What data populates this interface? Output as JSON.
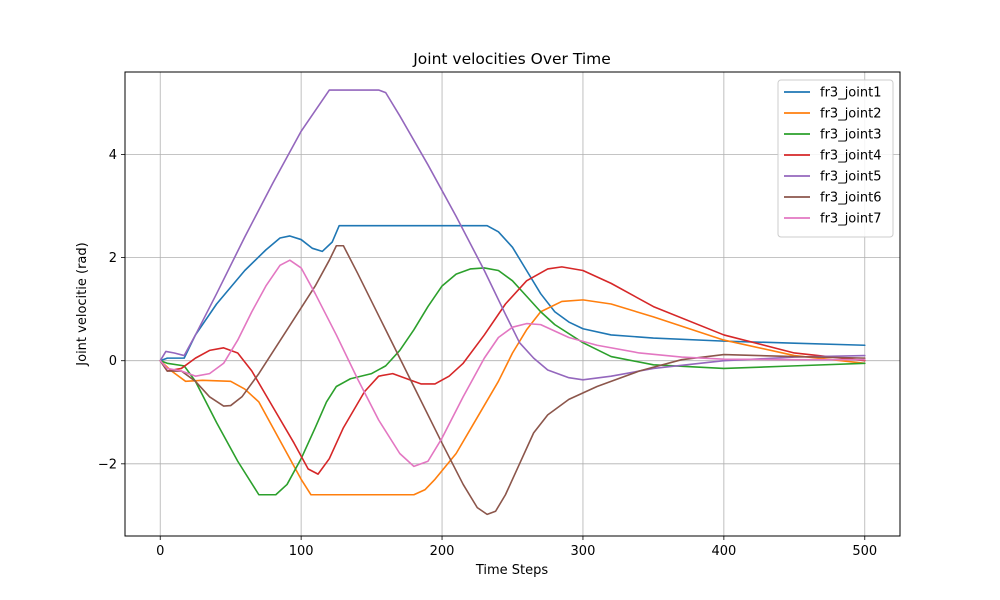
{
  "chart_data": {
    "type": "line",
    "title": "Joint velocities Over Time",
    "xlabel": "Time Steps",
    "ylabel": "Joint velocitie (rad)",
    "xlim": [
      -25,
      525
    ],
    "ylim": [
      -3.4,
      5.6
    ],
    "xticks": [
      0,
      100,
      200,
      300,
      400,
      500
    ],
    "yticks": [
      -2,
      0,
      2,
      4
    ],
    "grid": true,
    "legend_position": "upper-right",
    "series": [
      {
        "name": "fr3_joint1",
        "color": "#1f77b4",
        "points": [
          [
            0,
            0
          ],
          [
            5,
            0.05
          ],
          [
            17,
            0.05
          ],
          [
            25,
            0.5
          ],
          [
            40,
            1.1
          ],
          [
            60,
            1.75
          ],
          [
            75,
            2.15
          ],
          [
            85,
            2.38
          ],
          [
            92,
            2.42
          ],
          [
            100,
            2.35
          ],
          [
            108,
            2.18
          ],
          [
            115,
            2.12
          ],
          [
            122,
            2.3
          ],
          [
            127,
            2.62
          ],
          [
            200,
            2.62
          ],
          [
            232,
            2.62
          ],
          [
            240,
            2.5
          ],
          [
            250,
            2.2
          ],
          [
            260,
            1.75
          ],
          [
            270,
            1.3
          ],
          [
            280,
            0.95
          ],
          [
            290,
            0.75
          ],
          [
            300,
            0.62
          ],
          [
            320,
            0.5
          ],
          [
            350,
            0.44
          ],
          [
            400,
            0.38
          ],
          [
            450,
            0.34
          ],
          [
            500,
            0.3
          ]
        ]
      },
      {
        "name": "fr3_joint2",
        "color": "#ff7f0e",
        "points": [
          [
            0,
            0
          ],
          [
            8,
            -0.2
          ],
          [
            18,
            -0.4
          ],
          [
            30,
            -0.38
          ],
          [
            50,
            -0.4
          ],
          [
            60,
            -0.55
          ],
          [
            70,
            -0.8
          ],
          [
            80,
            -1.3
          ],
          [
            90,
            -1.8
          ],
          [
            100,
            -2.3
          ],
          [
            107,
            -2.6
          ],
          [
            150,
            -2.6
          ],
          [
            180,
            -2.6
          ],
          [
            188,
            -2.5
          ],
          [
            195,
            -2.3
          ],
          [
            210,
            -1.8
          ],
          [
            225,
            -1.1
          ],
          [
            240,
            -0.4
          ],
          [
            250,
            0.15
          ],
          [
            260,
            0.6
          ],
          [
            270,
            0.95
          ],
          [
            285,
            1.15
          ],
          [
            300,
            1.18
          ],
          [
            320,
            1.1
          ],
          [
            350,
            0.85
          ],
          [
            400,
            0.4
          ],
          [
            450,
            0.1
          ],
          [
            500,
            -0.05
          ]
        ]
      },
      {
        "name": "fr3_joint3",
        "color": "#2ca02c",
        "points": [
          [
            0,
            0
          ],
          [
            5,
            -0.05
          ],
          [
            17,
            -0.1
          ],
          [
            25,
            -0.4
          ],
          [
            40,
            -1.2
          ],
          [
            55,
            -1.95
          ],
          [
            70,
            -2.6
          ],
          [
            82,
            -2.6
          ],
          [
            90,
            -2.4
          ],
          [
            100,
            -1.9
          ],
          [
            110,
            -1.3
          ],
          [
            118,
            -0.8
          ],
          [
            125,
            -0.5
          ],
          [
            135,
            -0.35
          ],
          [
            150,
            -0.25
          ],
          [
            160,
            -0.1
          ],
          [
            170,
            0.2
          ],
          [
            180,
            0.6
          ],
          [
            190,
            1.05
          ],
          [
            200,
            1.45
          ],
          [
            210,
            1.68
          ],
          [
            220,
            1.78
          ],
          [
            230,
            1.8
          ],
          [
            240,
            1.75
          ],
          [
            250,
            1.55
          ],
          [
            260,
            1.25
          ],
          [
            270,
            0.95
          ],
          [
            280,
            0.7
          ],
          [
            300,
            0.35
          ],
          [
            320,
            0.08
          ],
          [
            350,
            -0.08
          ],
          [
            400,
            -0.15
          ],
          [
            450,
            -0.1
          ],
          [
            500,
            -0.05
          ]
        ]
      },
      {
        "name": "fr3_joint4",
        "color": "#d62728",
        "points": [
          [
            0,
            0
          ],
          [
            5,
            -0.2
          ],
          [
            15,
            -0.15
          ],
          [
            25,
            0.05
          ],
          [
            35,
            0.2
          ],
          [
            45,
            0.25
          ],
          [
            55,
            0.15
          ],
          [
            65,
            -0.2
          ],
          [
            80,
            -0.9
          ],
          [
            95,
            -1.6
          ],
          [
            105,
            -2.1
          ],
          [
            112,
            -2.2
          ],
          [
            120,
            -1.9
          ],
          [
            130,
            -1.3
          ],
          [
            145,
            -0.6
          ],
          [
            155,
            -0.3
          ],
          [
            165,
            -0.25
          ],
          [
            175,
            -0.35
          ],
          [
            185,
            -0.45
          ],
          [
            195,
            -0.45
          ],
          [
            205,
            -0.3
          ],
          [
            215,
            -0.05
          ],
          [
            230,
            0.5
          ],
          [
            245,
            1.1
          ],
          [
            260,
            1.55
          ],
          [
            275,
            1.78
          ],
          [
            285,
            1.82
          ],
          [
            300,
            1.75
          ],
          [
            320,
            1.5
          ],
          [
            350,
            1.05
          ],
          [
            400,
            0.5
          ],
          [
            450,
            0.15
          ],
          [
            500,
            0
          ]
        ]
      },
      {
        "name": "fr3_joint5",
        "color": "#9467bd",
        "points": [
          [
            0,
            0
          ],
          [
            4,
            0.18
          ],
          [
            10,
            0.15
          ],
          [
            17,
            0.1
          ],
          [
            25,
            0.5
          ],
          [
            40,
            1.3
          ],
          [
            60,
            2.4
          ],
          [
            80,
            3.45
          ],
          [
            100,
            4.45
          ],
          [
            120,
            5.25
          ],
          [
            155,
            5.25
          ],
          [
            160,
            5.2
          ],
          [
            170,
            4.75
          ],
          [
            190,
            3.8
          ],
          [
            210,
            2.8
          ],
          [
            230,
            1.75
          ],
          [
            245,
            0.9
          ],
          [
            255,
            0.35
          ],
          [
            265,
            0.05
          ],
          [
            275,
            -0.18
          ],
          [
            290,
            -0.33
          ],
          [
            300,
            -0.37
          ],
          [
            320,
            -0.3
          ],
          [
            350,
            -0.15
          ],
          [
            400,
            0
          ],
          [
            450,
            0.07
          ],
          [
            500,
            0.1
          ]
        ]
      },
      {
        "name": "fr3_joint6",
        "color": "#8c564b",
        "points": [
          [
            0,
            0
          ],
          [
            5,
            -0.2
          ],
          [
            15,
            -0.2
          ],
          [
            25,
            -0.4
          ],
          [
            35,
            -0.7
          ],
          [
            45,
            -0.88
          ],
          [
            50,
            -0.87
          ],
          [
            58,
            -0.7
          ],
          [
            70,
            -0.25
          ],
          [
            90,
            0.6
          ],
          [
            110,
            1.45
          ],
          [
            120,
            1.95
          ],
          [
            125,
            2.23
          ],
          [
            130,
            2.23
          ],
          [
            140,
            1.7
          ],
          [
            160,
            0.6
          ],
          [
            180,
            -0.5
          ],
          [
            200,
            -1.6
          ],
          [
            215,
            -2.4
          ],
          [
            225,
            -2.85
          ],
          [
            232,
            -2.98
          ],
          [
            238,
            -2.92
          ],
          [
            245,
            -2.6
          ],
          [
            255,
            -2.0
          ],
          [
            265,
            -1.4
          ],
          [
            275,
            -1.05
          ],
          [
            290,
            -0.75
          ],
          [
            310,
            -0.5
          ],
          [
            340,
            -0.2
          ],
          [
            370,
            0.02
          ],
          [
            400,
            0.12
          ],
          [
            450,
            0.08
          ],
          [
            500,
            0.05
          ]
        ]
      },
      {
        "name": "fr3_joint7",
        "color": "#e377c2",
        "points": [
          [
            0,
            0
          ],
          [
            5,
            -0.15
          ],
          [
            15,
            -0.2
          ],
          [
            25,
            -0.3
          ],
          [
            35,
            -0.25
          ],
          [
            45,
            -0.05
          ],
          [
            55,
            0.4
          ],
          [
            65,
            0.95
          ],
          [
            75,
            1.45
          ],
          [
            85,
            1.85
          ],
          [
            92,
            1.95
          ],
          [
            100,
            1.8
          ],
          [
            110,
            1.3
          ],
          [
            125,
            0.5
          ],
          [
            140,
            -0.35
          ],
          [
            155,
            -1.15
          ],
          [
            170,
            -1.8
          ],
          [
            180,
            -2.05
          ],
          [
            190,
            -1.95
          ],
          [
            200,
            -1.5
          ],
          [
            215,
            -0.7
          ],
          [
            230,
            0.05
          ],
          [
            240,
            0.45
          ],
          [
            250,
            0.65
          ],
          [
            260,
            0.72
          ],
          [
            270,
            0.7
          ],
          [
            290,
            0.45
          ],
          [
            310,
            0.3
          ],
          [
            340,
            0.15
          ],
          [
            370,
            0.07
          ],
          [
            400,
            0.03
          ],
          [
            450,
            0.02
          ],
          [
            500,
            0.02
          ]
        ]
      }
    ]
  }
}
